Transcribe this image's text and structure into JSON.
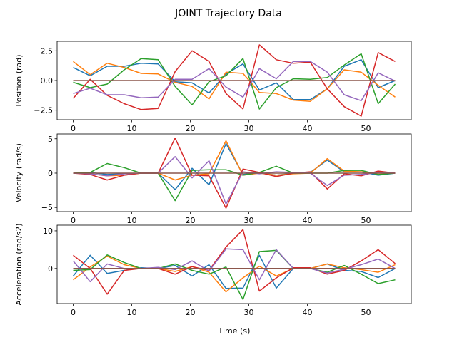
{
  "figure": {
    "title": "JOINT Trajectory Data"
  },
  "colors": [
    "#1f77b4",
    "#ff7f0e",
    "#2ca02c",
    "#d62728",
    "#9467bd",
    "#8c564b"
  ],
  "chart_data": [
    {
      "type": "line",
      "title": "",
      "xlabel": "",
      "ylabel": "Position (rad)",
      "xlim": [
        -2.75,
        57.75
      ],
      "ylim": [
        -3.3,
        3.3
      ],
      "xticks": [
        0,
        10,
        20,
        30,
        40,
        50
      ],
      "yticks": [
        -2.5,
        0.0,
        2.5
      ],
      "ytick_labels": [
        "−2.5",
        "0.0",
        "2.5"
      ],
      "x": [
        0,
        2.9,
        5.8,
        8.7,
        11.6,
        14.5,
        17.4,
        20.3,
        23.2,
        26.1,
        29.0,
        31.8,
        34.7,
        37.6,
        40.5,
        43.4,
        46.3,
        49.2,
        52.1,
        55.0
      ],
      "series": [
        {
          "values": [
            1.1,
            0.4,
            1.2,
            1.2,
            1.45,
            1.4,
            -0.1,
            -0.2,
            -1.05,
            0.55,
            1.4,
            -0.8,
            -0.2,
            -1.6,
            -1.6,
            -0.7,
            1.2,
            1.75,
            -0.6,
            0.0
          ]
        },
        {
          "values": [
            1.6,
            0.5,
            1.45,
            1.1,
            0.6,
            0.55,
            -0.15,
            -0.5,
            -1.55,
            0.7,
            0.6,
            -1.0,
            -1.1,
            -1.65,
            -1.75,
            -0.7,
            0.9,
            0.7,
            -0.4,
            -1.4
          ]
        },
        {
          "values": [
            -0.15,
            -0.6,
            -0.3,
            0.9,
            1.85,
            1.75,
            -0.5,
            -2.05,
            -0.1,
            0.4,
            1.85,
            -2.4,
            -0.6,
            0.15,
            0.1,
            0.25,
            1.3,
            2.25,
            -1.95,
            -0.3
          ]
        },
        {
          "values": [
            -1.5,
            0.1,
            -1.25,
            -1.95,
            -2.45,
            -2.35,
            0.75,
            2.5,
            1.6,
            -1.1,
            -2.4,
            3.0,
            1.75,
            1.45,
            1.55,
            -0.7,
            -2.2,
            -3.0,
            2.35,
            1.6
          ]
        },
        {
          "values": [
            -1.1,
            -0.65,
            -1.2,
            -1.2,
            -1.45,
            -1.4,
            0.1,
            0.1,
            1.0,
            -0.55,
            -1.4,
            1.0,
            0.15,
            1.6,
            1.6,
            0.7,
            -1.2,
            -1.7,
            0.65,
            -0.05
          ]
        },
        {
          "values": [
            0.0,
            0.0,
            0.0,
            0.0,
            0.0,
            0.0,
            0.0,
            0.0,
            0.0,
            0.0,
            0.0,
            0.0,
            0.0,
            0.0,
            0.0,
            0.0,
            0.0,
            0.0,
            0.0,
            0.0
          ]
        }
      ]
    },
    {
      "type": "line",
      "title": "",
      "xlabel": "",
      "ylabel": "Velocity (rad/s)",
      "xlim": [
        -2.75,
        57.75
      ],
      "ylim": [
        -5.6,
        5.7
      ],
      "xticks": [
        0,
        10,
        20,
        30,
        40,
        50
      ],
      "yticks": [
        -5,
        0,
        5
      ],
      "ytick_labels": [
        "−5",
        "0",
        "5"
      ],
      "x": [
        0,
        2.9,
        5.8,
        8.7,
        11.6,
        14.5,
        17.4,
        20.3,
        23.2,
        26.1,
        29.0,
        31.8,
        34.7,
        37.6,
        40.5,
        43.4,
        46.3,
        49.2,
        52.1,
        55.0
      ],
      "series": [
        {
          "values": [
            0.0,
            0.1,
            -0.2,
            -0.1,
            0.0,
            0.0,
            -2.4,
            0.7,
            -1.7,
            4.3,
            -0.2,
            0.1,
            -0.3,
            0.0,
            0.1,
            1.9,
            0.2,
            0.2,
            -0.3,
            0.0
          ]
        },
        {
          "values": [
            0.0,
            -0.1,
            -0.4,
            -0.3,
            0.0,
            0.0,
            -1.0,
            -0.3,
            -0.1,
            4.7,
            -0.3,
            0.0,
            -0.3,
            -0.1,
            0.0,
            2.1,
            0.3,
            0.2,
            0.0,
            0.0
          ]
        },
        {
          "values": [
            0.0,
            0.1,
            1.4,
            0.8,
            0.0,
            0.0,
            -4.0,
            0.4,
            0.5,
            0.5,
            -0.3,
            0.1,
            1.0,
            0.0,
            0.0,
            0.0,
            0.4,
            0.4,
            -0.2,
            0.0
          ]
        },
        {
          "values": [
            0.0,
            -0.2,
            -1.0,
            -0.3,
            0.0,
            0.0,
            5.1,
            -0.3,
            -0.4,
            -5.1,
            0.6,
            0.1,
            -0.5,
            0.0,
            0.2,
            -2.3,
            -0.1,
            -0.4,
            0.3,
            0.0
          ]
        },
        {
          "values": [
            0.0,
            -0.1,
            -0.4,
            -0.1,
            0.0,
            0.0,
            2.4,
            -0.7,
            1.8,
            -4.5,
            0.2,
            -0.1,
            0.2,
            0.1,
            0.0,
            -1.8,
            -0.3,
            -0.2,
            0.1,
            0.0
          ]
        },
        {
          "values": [
            0.0,
            0.0,
            0.0,
            0.0,
            0.0,
            0.0,
            0.0,
            0.0,
            0.0,
            0.0,
            0.0,
            0.0,
            0.0,
            0.0,
            0.0,
            0.0,
            0.0,
            0.0,
            0.0,
            0.0
          ]
        }
      ]
    },
    {
      "type": "line",
      "title": "",
      "xlabel": "Time (s)",
      "ylabel": "Acceleration (rad/s2)",
      "xlim": [
        -2.75,
        57.75
      ],
      "ylim": [
        -9.3,
        11.5
      ],
      "xticks": [
        0,
        10,
        20,
        30,
        40,
        50
      ],
      "yticks": [
        0,
        10
      ],
      "ytick_labels": [
        "0",
        "10"
      ],
      "x": [
        0,
        2.9,
        5.8,
        8.7,
        11.6,
        14.5,
        17.4,
        20.3,
        23.2,
        26.1,
        29.0,
        31.8,
        34.7,
        37.6,
        40.5,
        43.4,
        46.3,
        49.2,
        52.1,
        55.0
      ],
      "series": [
        {
          "values": [
            -2.0,
            3.5,
            -1.3,
            -0.5,
            0.2,
            0.0,
            0.8,
            -2.0,
            1.0,
            -5.3,
            -5.2,
            3.5,
            -5.2,
            0.0,
            0.0,
            1.2,
            -0.5,
            -0.8,
            -2.4,
            0.0
          ]
        },
        {
          "values": [
            -3.0,
            0.4,
            3.3,
            1.0,
            0.0,
            0.0,
            -0.8,
            0.5,
            -1.0,
            -6.2,
            -2.5,
            0.6,
            -2.0,
            0.0,
            0.0,
            1.2,
            0.2,
            -0.3,
            -1.0,
            1.0
          ]
        },
        {
          "values": [
            -0.5,
            -0.3,
            3.6,
            1.6,
            0.0,
            0.0,
            1.2,
            -0.5,
            -1.5,
            0.4,
            -8.2,
            4.5,
            4.8,
            0.0,
            0.0,
            -1.0,
            0.8,
            -1.5,
            -4.0,
            -3.0
          ]
        },
        {
          "values": [
            3.5,
            0.0,
            -6.8,
            -0.5,
            0.0,
            0.0,
            -1.5,
            0.5,
            -0.5,
            5.7,
            10.3,
            -6.0,
            -2.5,
            0.2,
            0.2,
            -1.5,
            -0.5,
            2.0,
            5.0,
            1.3
          ]
        },
        {
          "values": [
            2.0,
            -3.5,
            1.2,
            0.0,
            0.0,
            0.3,
            -0.3,
            2.0,
            -0.7,
            5.2,
            5.0,
            -3.0,
            5.0,
            0.0,
            0.0,
            -1.2,
            -0.2,
            1.0,
            2.5,
            0.0
          ]
        },
        {
          "values": [
            0.0,
            0.0,
            0.0,
            0.0,
            0.0,
            0.0,
            0.0,
            0.0,
            0.0,
            0.0,
            0.0,
            0.0,
            0.0,
            0.0,
            0.0,
            0.0,
            0.0,
            0.0,
            0.0,
            0.0
          ]
        }
      ]
    }
  ]
}
